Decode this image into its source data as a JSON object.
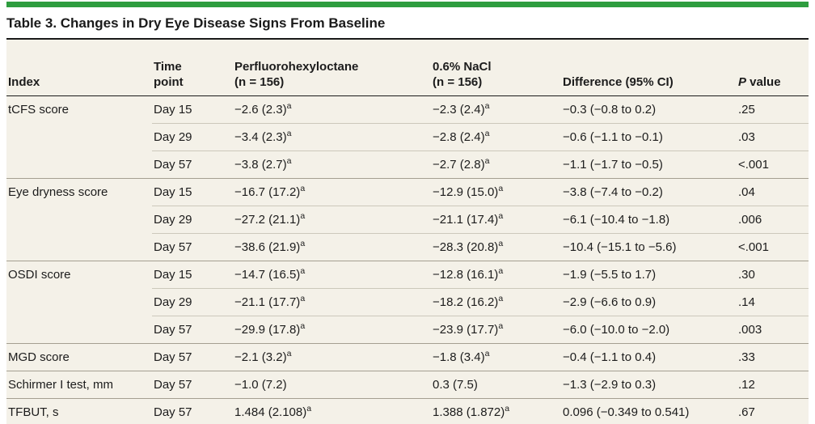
{
  "title": "Table 3. Changes in Dry Eye Disease Signs From Baseline",
  "colors": {
    "accent_green": "#2e9d3f",
    "table_background": "#f4f1e8",
    "dark_rule": "#1a1a1a",
    "group_rule": "#a49f91",
    "sub_rule": "#ccc8bb",
    "text": "#1c1c1c"
  },
  "table": {
    "headers": {
      "index": "Index",
      "time_line1": "Time",
      "time_line2": "point",
      "pfho_line1": "Perfluorohexyloctane",
      "pfho_line2": "(n = 156)",
      "nacl_line1": "0.6% NaCl",
      "nacl_line2": "(n = 156)",
      "diff": "Difference (95% CI)",
      "p_italic": "P",
      "p_rest": " value"
    },
    "rows": [
      {
        "index": "tCFS score",
        "time": "Day 15",
        "pfho": "−2.6 (2.3)",
        "pfho_sup": "a",
        "nacl": "−2.3 (2.4)",
        "nacl_sup": "a",
        "diff": "−0.3 (−0.8 to 0.2)",
        "p": ".25",
        "group_start": true
      },
      {
        "index": "",
        "time": "Day 29",
        "pfho": "−3.4 (2.3)",
        "pfho_sup": "a",
        "nacl": "−2.8 (2.4)",
        "nacl_sup": "a",
        "diff": "−0.6 (−1.1 to −0.1)",
        "p": ".03",
        "group_start": false
      },
      {
        "index": "",
        "time": "Day 57",
        "pfho": "−3.8 (2.7)",
        "pfho_sup": "a",
        "nacl": "−2.7 (2.8)",
        "nacl_sup": "a",
        "diff": "−1.1 (−1.7 to −0.5)",
        "p": "<.001",
        "group_start": false
      },
      {
        "index": "Eye dryness score",
        "time": "Day 15",
        "pfho": "−16.7 (17.2)",
        "pfho_sup": "a",
        "nacl": "−12.9 (15.0)",
        "nacl_sup": "a",
        "diff": "−3.8 (−7.4 to −0.2)",
        "p": ".04",
        "group_start": true
      },
      {
        "index": "",
        "time": "Day 29",
        "pfho": "−27.2 (21.1)",
        "pfho_sup": "a",
        "nacl": "−21.1 (17.4)",
        "nacl_sup": "a",
        "diff": "−6.1 (−10.4 to −1.8)",
        "p": ".006",
        "group_start": false
      },
      {
        "index": "",
        "time": "Day 57",
        "pfho": "−38.6 (21.9)",
        "pfho_sup": "a",
        "nacl": "−28.3 (20.8)",
        "nacl_sup": "a",
        "diff": "−10.4 (−15.1 to −5.6)",
        "p": "<.001",
        "group_start": false
      },
      {
        "index": "OSDI score",
        "time": "Day 15",
        "pfho": "−14.7 (16.5)",
        "pfho_sup": "a",
        "nacl": "−12.8 (16.1)",
        "nacl_sup": "a",
        "diff": "−1.9 (−5.5 to 1.7)",
        "p": ".30",
        "group_start": true
      },
      {
        "index": "",
        "time": "Day 29",
        "pfho": "−21.1 (17.7)",
        "pfho_sup": "a",
        "nacl": "−18.2 (16.2)",
        "nacl_sup": "a",
        "diff": "−2.9 (−6.6 to 0.9)",
        "p": ".14",
        "group_start": false
      },
      {
        "index": "",
        "time": "Day 57",
        "pfho": "−29.9 (17.8)",
        "pfho_sup": "a",
        "nacl": "−23.9 (17.7)",
        "nacl_sup": "a",
        "diff": "−6.0 (−10.0 to −2.0)",
        "p": ".003",
        "group_start": false
      },
      {
        "index": "MGD score",
        "time": "Day 57",
        "pfho": "−2.1 (3.2)",
        "pfho_sup": "a",
        "nacl": "−1.8 (3.4)",
        "nacl_sup": "a",
        "diff": "−0.4 (−1.1 to 0.4)",
        "p": ".33",
        "group_start": true
      },
      {
        "index": "Schirmer I test, mm",
        "time": "Day 57",
        "pfho": "−1.0 (7.2)",
        "pfho_sup": "",
        "nacl": "0.3 (7.5)",
        "nacl_sup": "",
        "diff": "−1.3 (−2.9 to 0.3)",
        "p": ".12",
        "group_start": true
      },
      {
        "index": "TFBUT, s",
        "time": "Day 57",
        "pfho": "1.484 (2.108)",
        "pfho_sup": "a",
        "nacl": "1.388 (1.872)",
        "nacl_sup": "a",
        "diff": "0.096 (−0.349 to 0.541)",
        "p": ".67",
        "group_start": true
      }
    ]
  }
}
